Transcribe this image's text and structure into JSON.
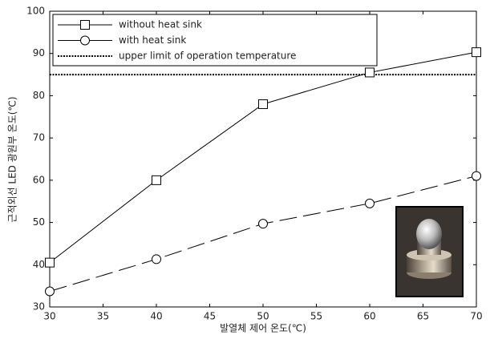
{
  "chart_data": {
    "type": "line",
    "x_label": "발열체 제어 온도(℃)",
    "y_label": "근적외선 LED 광원부 온도(℃)",
    "x": [
      30,
      40,
      50,
      60,
      70
    ],
    "series": [
      {
        "name": "without heat sink",
        "color": "#000000",
        "dash": "solid",
        "marker": "square",
        "values": [
          40.5,
          60,
          78,
          85.5,
          90.3
        ]
      },
      {
        "name": "with heat sink",
        "color": "#000000",
        "dash": "dashed",
        "marker": "circle",
        "values": [
          33.7,
          41.3,
          49.7,
          54.5,
          61
        ]
      }
    ],
    "hline": {
      "name": "upper limit of operation temperature",
      "value": 85,
      "color": "#000000",
      "dash": "dotted"
    },
    "xlim": [
      30,
      70
    ],
    "xticks": [
      30,
      35,
      40,
      45,
      50,
      55,
      60,
      65,
      70
    ],
    "ylim": [
      30,
      100
    ],
    "yticks": [
      30,
      40,
      50,
      60,
      70,
      80,
      90,
      100
    ],
    "grid": false,
    "legend": "top-left"
  }
}
